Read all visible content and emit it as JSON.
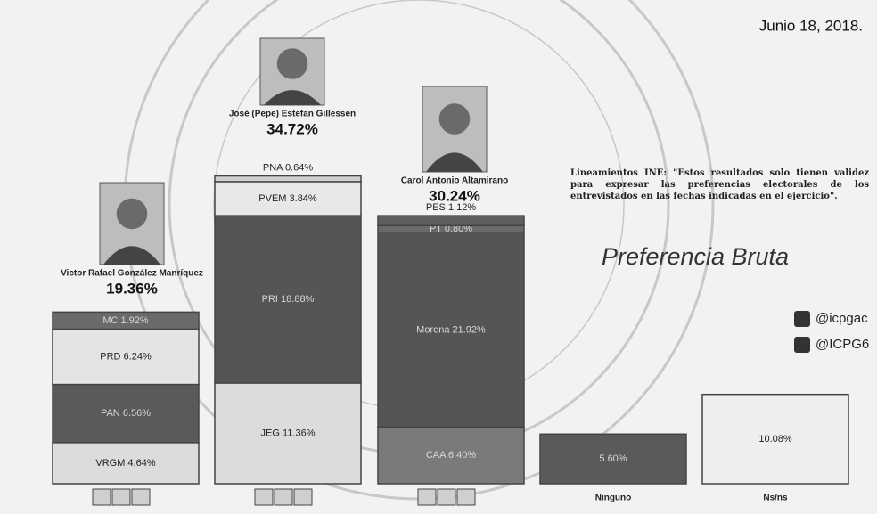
{
  "chart_data": {
    "type": "stacked-bar",
    "date": "Junio 18, 2018.",
    "title": "Preferencia Bruta",
    "note": "Lineamientos INE: \"Estos resultados solo tienen validez para expresar las preferencias electorales de los entrevistados en las fechas indicadas en el ejercicio\".",
    "social": [
      "@icpgac",
      "@ICPG6"
    ],
    "categories": [
      null,
      null,
      null,
      "Ninguno",
      "Ns/ns"
    ],
    "columns": [
      {
        "candidate": "Victor Rafael González Manríquez",
        "total": 19.36,
        "total_label": "19.36%",
        "segments": [
          {
            "name": "VRGM",
            "value": 4.64,
            "value_label": "4.64%",
            "color": "#dcdcdc"
          },
          {
            "name": "PAN",
            "value": 6.56,
            "value_label": "6.56%",
            "color": "#5a5a5a"
          },
          {
            "name": "PRD",
            "value": 6.24,
            "value_label": "6.24%",
            "color": "#e4e4e4"
          },
          {
            "name": "MC",
            "value": 1.92,
            "value_label": "1.92%",
            "color": "#6a6a6a"
          }
        ]
      },
      {
        "candidate": "José (Pepe) Estefan Gillessen",
        "total": 34.72,
        "total_label": "34.72%",
        "segments": [
          {
            "name": "JEG",
            "value": 11.36,
            "value_label": "11.36%",
            "color": "#dcdcdc"
          },
          {
            "name": "PRI",
            "value": 18.88,
            "value_label": "18.88%",
            "color": "#555555"
          },
          {
            "name": "PVEM",
            "value": 3.84,
            "value_label": "3.84%",
            "color": "#e8e8e8"
          },
          {
            "name": "PNA",
            "value": 0.64,
            "value_label": "0.64%",
            "color": "#d0d0d0"
          }
        ]
      },
      {
        "candidate": "Carol Antonio Altamirano",
        "total": 30.24,
        "total_label": "30.24%",
        "segments": [
          {
            "name": "CAA",
            "value": 6.4,
            "value_label": "6.40%",
            "color": "#7a7a7a"
          },
          {
            "name": "Morena",
            "value": 21.92,
            "value_label": "21.92%",
            "color": "#555555"
          },
          {
            "name": "PT",
            "value": 0.8,
            "value_label": "0.80%",
            "color": "#6a6a6a"
          },
          {
            "name": "PES",
            "value": 1.12,
            "value_label": "1.12%",
            "color": "#5e5e5e"
          }
        ]
      },
      {
        "candidate": null,
        "total": null,
        "total_label": null,
        "segments": [
          {
            "name": null,
            "value": 5.6,
            "value_label": "5.60%",
            "color": "#5a5a5a"
          }
        ]
      },
      {
        "candidate": null,
        "total": null,
        "total_label": null,
        "segments": [
          {
            "name": null,
            "value": 10.08,
            "value_label": "10.08%",
            "color": "#eeeeee"
          }
        ]
      }
    ]
  }
}
